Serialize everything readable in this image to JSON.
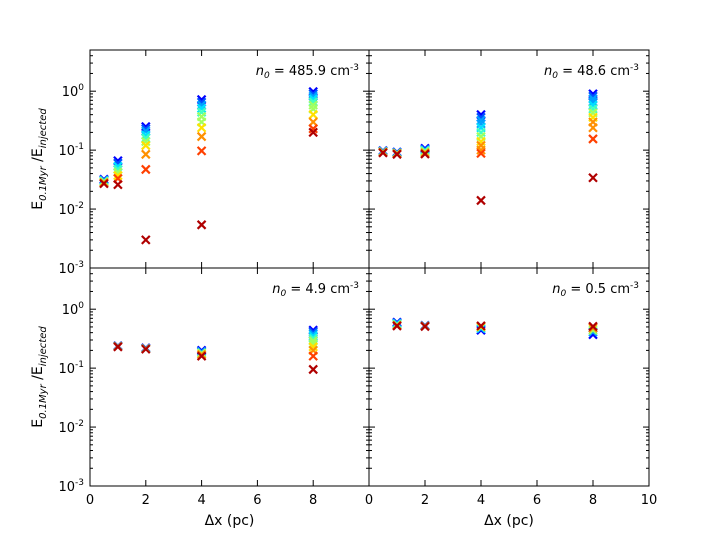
{
  "chart_data": {
    "type": "scatter",
    "layout": "2x2 grid, shared axes",
    "x_axis": {
      "label": "Δx (pc)",
      "range": [
        0,
        10
      ],
      "ticks": [
        0,
        2,
        4,
        6,
        8,
        10
      ],
      "tick_labels_left": [
        "0",
        "2",
        "4",
        "6",
        "8"
      ],
      "tick_labels_right": [
        "0",
        "2",
        "4",
        "6",
        "8",
        "10"
      ]
    },
    "y_axis": {
      "label_main": "E",
      "label_sub": "0.1Myr",
      "label_sep": " /E",
      "label_sub2": "injected",
      "scale": "log",
      "range": [
        0.001,
        5
      ],
      "ticks": [
        0.001,
        0.01,
        0.1,
        1
      ],
      "tick_labels": [
        "10",
        "10",
        "10",
        "10"
      ],
      "tick_exponents": [
        "-3",
        "-2",
        "-1",
        "0"
      ]
    },
    "colormap": [
      "#0000ff",
      "#0050ff",
      "#00a0ff",
      "#00e0ff",
      "#40ffbf",
      "#a0ff60",
      "#ffe000",
      "#ff9000",
      "#ff4000",
      "#b00000"
    ],
    "panels": [
      {
        "id": "n485",
        "label_prefix": "n",
        "label_sub": "0",
        "label_value": " = 485.9 cm",
        "label_exp": "-3",
        "series": [
          {
            "x": 0.5,
            "y": [
              0.032,
              0.031,
              0.03,
              0.029,
              0.028,
              0.027
            ]
          },
          {
            "x": 1,
            "y": [
              0.066,
              0.06,
              0.053,
              0.047,
              0.042,
              0.037,
              0.033,
              0.026
            ]
          },
          {
            "x": 2,
            "y": [
              0.25,
              0.23,
              0.21,
              0.18,
              0.16,
              0.14,
              0.12,
              0.085,
              0.047,
              0.003
            ]
          },
          {
            "x": 4,
            "y": [
              0.72,
              0.65,
              0.58,
              0.51,
              0.44,
              0.37,
              0.3,
              0.24,
              0.17,
              0.097,
              0.0054
            ]
          },
          {
            "x": 8,
            "y": [
              0.98,
              0.9,
              0.82,
              0.74,
              0.66,
              0.58,
              0.5,
              0.4,
              0.3,
              0.23,
              0.2
            ]
          }
        ]
      },
      {
        "id": "n48",
        "label_prefix": "n",
        "label_sub": "0",
        "label_value": " = 48.6 cm",
        "label_exp": "-3",
        "series": [
          {
            "x": 0.5,
            "y": [
              0.098,
              0.096,
              0.094,
              0.092,
              0.09
            ]
          },
          {
            "x": 1,
            "y": [
              0.093,
              0.091,
              0.089,
              0.087,
              0.085
            ]
          },
          {
            "x": 2,
            "y": [
              0.107,
              0.102,
              0.098,
              0.094,
              0.09,
              0.086
            ]
          },
          {
            "x": 4,
            "y": [
              0.4,
              0.36,
              0.32,
              0.28,
              0.24,
              0.2,
              0.17,
              0.14,
              0.12,
              0.1,
              0.088,
              0.014
            ]
          },
          {
            "x": 8,
            "y": [
              0.9,
              0.82,
              0.74,
              0.66,
              0.58,
              0.5,
              0.43,
              0.36,
              0.3,
              0.24,
              0.155,
              0.034
            ]
          }
        ]
      },
      {
        "id": "n4",
        "label_prefix": "n",
        "label_sub": "0",
        "label_value": " = 4.9 cm",
        "label_exp": "-3",
        "series": [
          {
            "x": 1,
            "y": [
              0.24,
              0.235,
              0.23
            ]
          },
          {
            "x": 2,
            "y": [
              0.22,
              0.215,
              0.21
            ]
          },
          {
            "x": 4,
            "y": [
              0.2,
              0.19,
              0.18,
              0.17,
              0.16
            ]
          },
          {
            "x": 8,
            "y": [
              0.44,
              0.41,
              0.38,
              0.35,
              0.32,
              0.29,
              0.26,
              0.23,
              0.2,
              0.16,
              0.095
            ]
          }
        ]
      },
      {
        "id": "n0_5",
        "label_prefix": "n",
        "label_sub": "0",
        "label_value": " = 0.5 cm",
        "label_exp": "-3",
        "series": [
          {
            "x": 1,
            "y": [
              0.6,
              0.58,
              0.56,
              0.54,
              0.53,
              0.52
            ]
          },
          {
            "x": 2,
            "y": [
              0.53,
              0.52,
              0.51
            ]
          },
          {
            "x": 4,
            "y": [
              0.44,
              0.47,
              0.5,
              0.52
            ]
          },
          {
            "x": 8,
            "y": [
              0.37,
              0.41,
              0.44,
              0.48,
              0.51
            ]
          }
        ]
      }
    ]
  }
}
